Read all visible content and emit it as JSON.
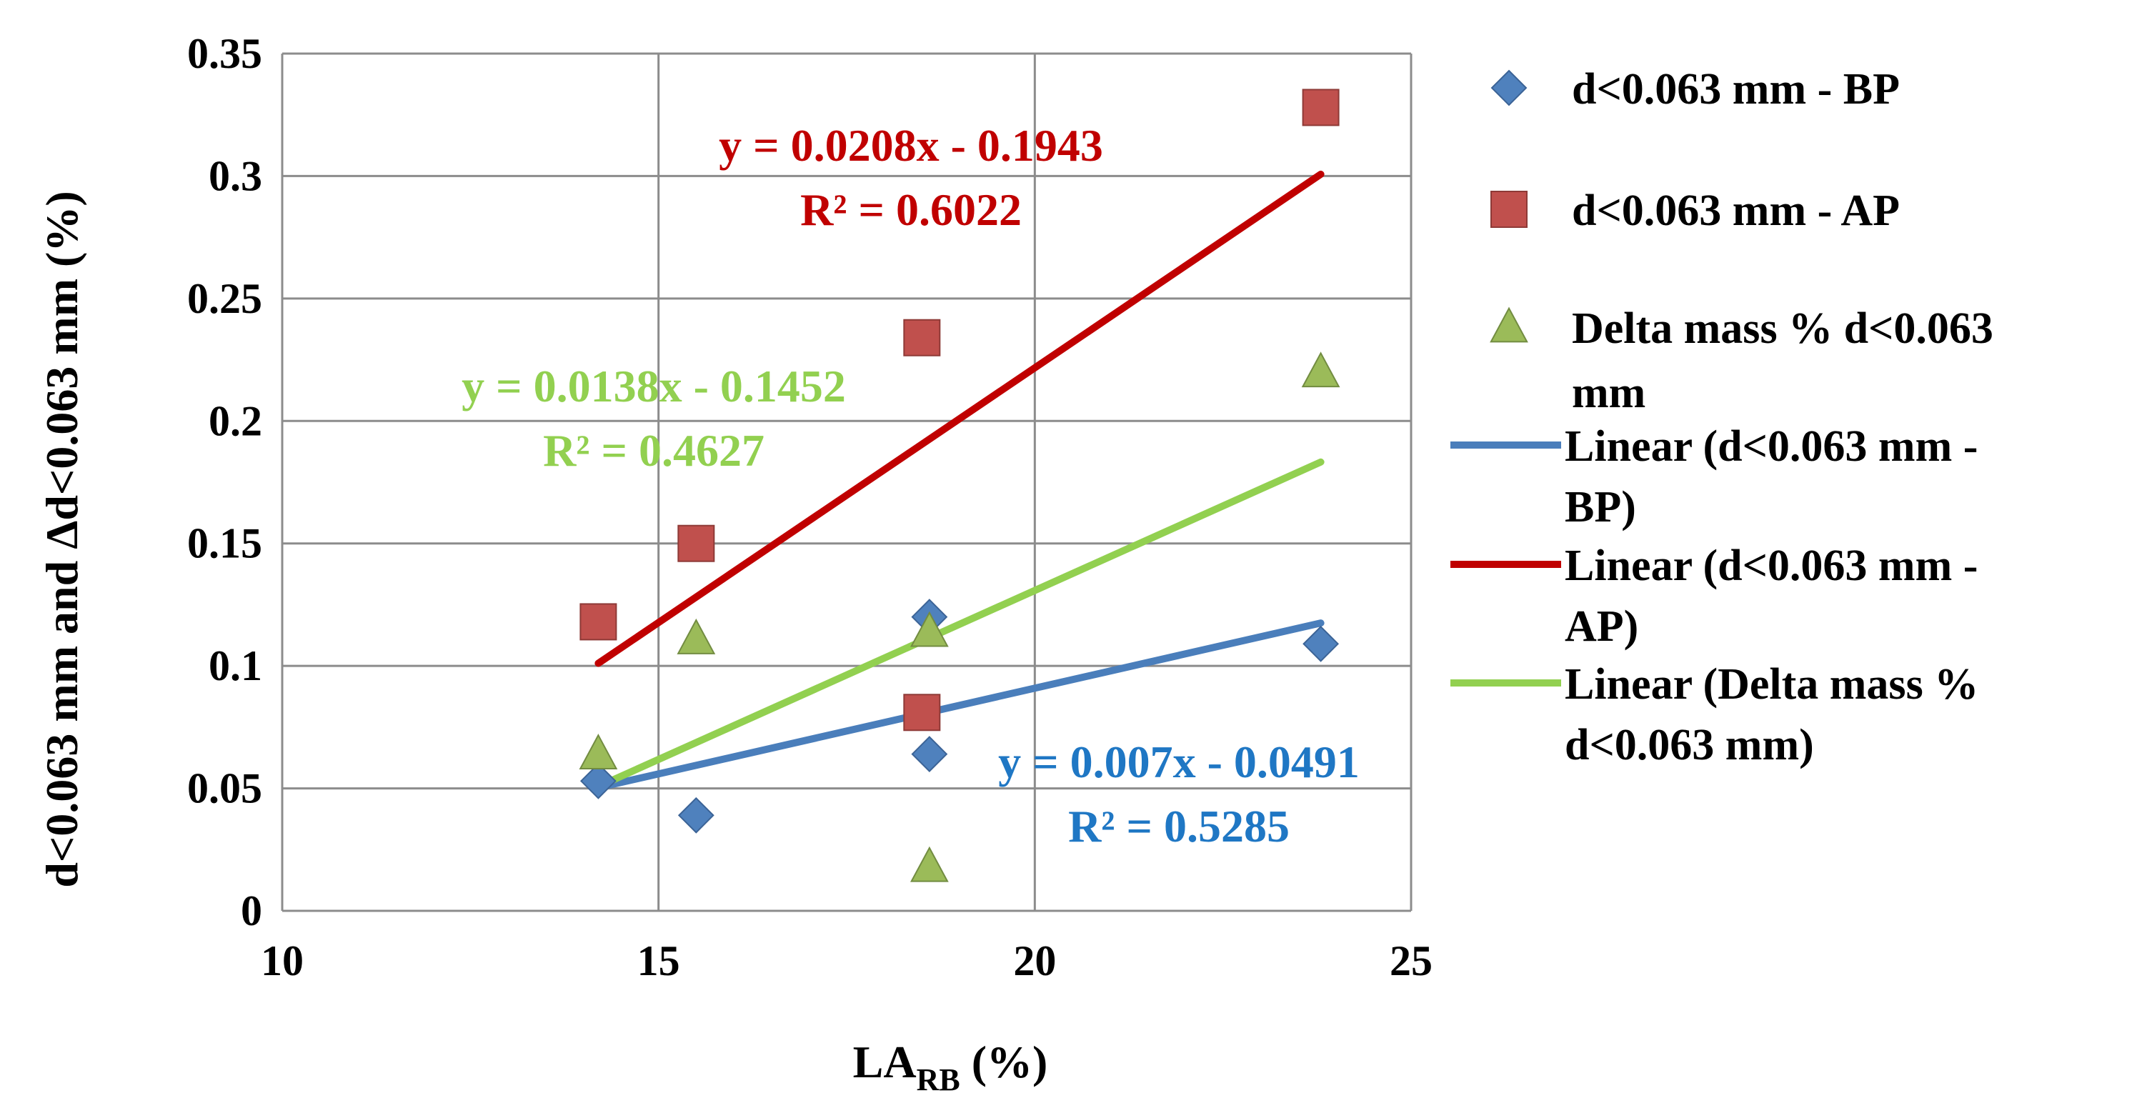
{
  "chart_data": {
    "type": "scatter",
    "title": "",
    "xlabel": {
      "main": "LA",
      "sub": "RB",
      "suffix": " (%)"
    },
    "ylabel": "d<0.063 mm and Δd<0.063 mm (%)",
    "xlim": [
      10,
      25
    ],
    "ylim": [
      0,
      0.35
    ],
    "x_ticks": [
      "10",
      "15",
      "20",
      "25"
    ],
    "y_ticks": [
      "0",
      "0.05",
      "0.1",
      "0.15",
      "0.2",
      "0.25",
      "0.3",
      "0.35"
    ],
    "grid": true,
    "legend_position": "right",
    "series": [
      {
        "name": "d<0.063 mm - BP",
        "marker": "diamond",
        "color": "#4F81BD",
        "points": [
          [
            14.2,
            0.053
          ],
          [
            15.5,
            0.039
          ],
          [
            18.6,
            0.12
          ],
          [
            18.6,
            0.064
          ],
          [
            23.8,
            0.109
          ]
        ]
      },
      {
        "name": "d<0.063 mm - AP",
        "marker": "square",
        "color": "#C0504D",
        "points": [
          [
            14.2,
            0.118
          ],
          [
            15.5,
            0.15
          ],
          [
            18.5,
            0.234
          ],
          [
            18.5,
            0.081
          ],
          [
            23.8,
            0.328
          ]
        ]
      },
      {
        "name": "Delta mass % d<0.063 mm",
        "marker": "triangle",
        "color": "#9BBB59",
        "points": [
          [
            14.2,
            0.064
          ],
          [
            15.5,
            0.111
          ],
          [
            18.6,
            0.114
          ],
          [
            18.6,
            0.018
          ],
          [
            23.8,
            0.22
          ]
        ]
      }
    ],
    "trendlines": [
      {
        "name": "Linear (d<0.063 mm - BP)",
        "color": "#4A7EBB",
        "slope": 0.007,
        "intercept": -0.0491,
        "x_range": [
          14.2,
          23.8
        ],
        "equation": "y = 0.007x - 0.0491",
        "r2": "R² = 0.5285",
        "label_color": "#1F77C4"
      },
      {
        "name": "Linear (d<0.063 mm - AP)",
        "color": "#C00000",
        "slope": 0.0208,
        "intercept": -0.1943,
        "x_range": [
          14.2,
          23.8
        ],
        "equation": "y = 0.0208x - 0.1943",
        "r2": "R² = 0.6022",
        "label_color": "#C00000"
      },
      {
        "name": "Linear (Delta mass % d<0.063 mm)",
        "color": "#92D050",
        "slope": 0.0138,
        "intercept": -0.1452,
        "x_range": [
          14.2,
          23.8
        ],
        "equation": "y = 0.0138x - 0.1452",
        "r2": "R² = 0.4627",
        "label_color": "#92D050"
      }
    ],
    "legend_entries": [
      {
        "lines": [
          "d<0.063 mm - BP"
        ],
        "symbol": "diamond",
        "color": "#4F81BD"
      },
      {
        "lines": [
          "d<0.063 mm - AP"
        ],
        "symbol": "square",
        "color": "#C0504D"
      },
      {
        "lines": [
          "Delta mass % d<0.063",
          "mm"
        ],
        "symbol": "triangle",
        "color": "#9BBB59"
      },
      {
        "lines": [
          "Linear (d<0.063 mm -",
          "BP)"
        ],
        "symbol": "line",
        "color": "#4A7EBB"
      },
      {
        "lines": [
          "Linear (d<0.063 mm -",
          "AP)"
        ],
        "symbol": "line",
        "color": "#C00000"
      },
      {
        "lines": [
          "Linear (Delta mass %",
          "d<0.063 mm)"
        ],
        "symbol": "line",
        "color": "#92D050"
      }
    ]
  }
}
